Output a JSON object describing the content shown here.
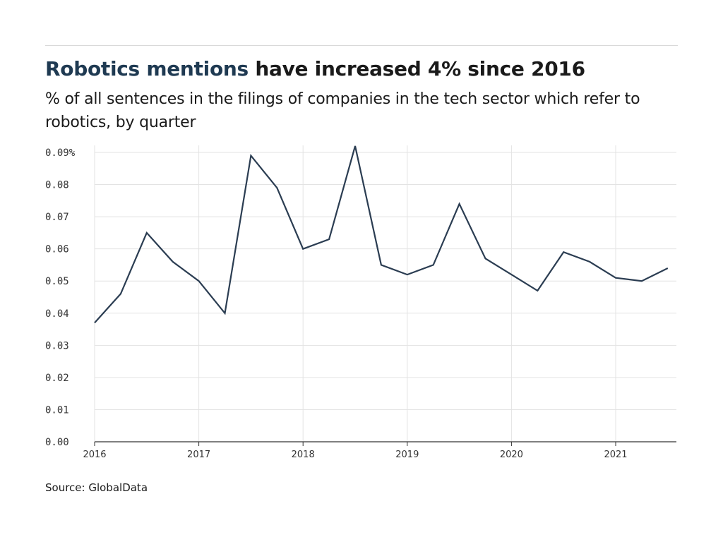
{
  "header": {
    "title_highlight": "Robotics mentions",
    "title_rest": " have increased 4% since 2016",
    "subtitle": "% of all sentences in the filings of companies in the tech sector which refer to robotics, by quarter"
  },
  "footer": {
    "source": "Source: GlobalData"
  },
  "colors": {
    "highlight": "#1f3a52",
    "line": "#2b3d52",
    "grid": "#e3e3e3",
    "axis": "#333333"
  },
  "chart_data": {
    "type": "line",
    "title": "",
    "xlabel": "",
    "ylabel": "",
    "grid": true,
    "ylim": [
      0,
      0.09
    ],
    "yticks": [
      {
        "value": 0.0,
        "label": "0.00"
      },
      {
        "value": 0.01,
        "label": "0.01"
      },
      {
        "value": 0.02,
        "label": "0.02"
      },
      {
        "value": 0.03,
        "label": "0.03"
      },
      {
        "value": 0.04,
        "label": "0.04"
      },
      {
        "value": 0.05,
        "label": "0.05"
      },
      {
        "value": 0.06,
        "label": "0.06"
      },
      {
        "value": 0.07,
        "label": "0.07"
      },
      {
        "value": 0.08,
        "label": "0.08"
      },
      {
        "value": 0.09,
        "label": "0.09%"
      }
    ],
    "xticks": [
      "2016",
      "2017",
      "2018",
      "2019",
      "2020",
      "2021"
    ],
    "x": [
      "2016 Q1",
      "2016 Q2",
      "2016 Q3",
      "2016 Q4",
      "2017 Q1",
      "2017 Q2",
      "2017 Q3",
      "2017 Q4",
      "2018 Q1",
      "2018 Q2",
      "2018 Q3",
      "2018 Q4",
      "2019 Q1",
      "2019 Q2",
      "2019 Q3",
      "2019 Q4",
      "2020 Q1",
      "2020 Q2",
      "2020 Q3",
      "2020 Q4",
      "2021 Q1",
      "2021 Q2",
      "2021 Q3"
    ],
    "series": [
      {
        "values": [
          0.037,
          0.046,
          0.065,
          0.056,
          0.05,
          0.04,
          0.089,
          0.079,
          0.06,
          0.063,
          0.092,
          0.055,
          0.052,
          0.055,
          0.074,
          0.057,
          0.052,
          0.047,
          0.059,
          0.056,
          0.051,
          0.05,
          0.054
        ]
      }
    ]
  }
}
